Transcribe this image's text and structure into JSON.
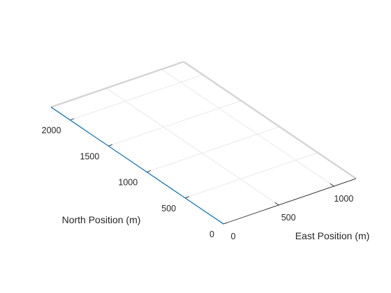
{
  "chart_data": {
    "type": "line",
    "projection": "3d-perspective",
    "title": "",
    "xlabel": "East Position (m)",
    "ylabel": "North Position (m)",
    "zlabel": "",
    "xlim": [
      0,
      1200
    ],
    "ylim": [
      0,
      2250
    ],
    "grid": true,
    "x_ticks": [
      0,
      500,
      1000
    ],
    "y_ticks": [
      0,
      500,
      1000,
      1500,
      2000
    ],
    "x_tick_labels": [
      "0",
      "500",
      "1000"
    ],
    "y_tick_labels": [
      "0",
      "500",
      "1000",
      "1500",
      "2000"
    ],
    "series": [
      {
        "x": [
          0,
          0
        ],
        "y": [
          0,
          2250
        ],
        "color": "#0072bd"
      }
    ]
  },
  "colors": {
    "line": "#0072bd",
    "grid": "#e3e3e3",
    "axis": "#262626",
    "box_edge": "#d4d4d4"
  }
}
